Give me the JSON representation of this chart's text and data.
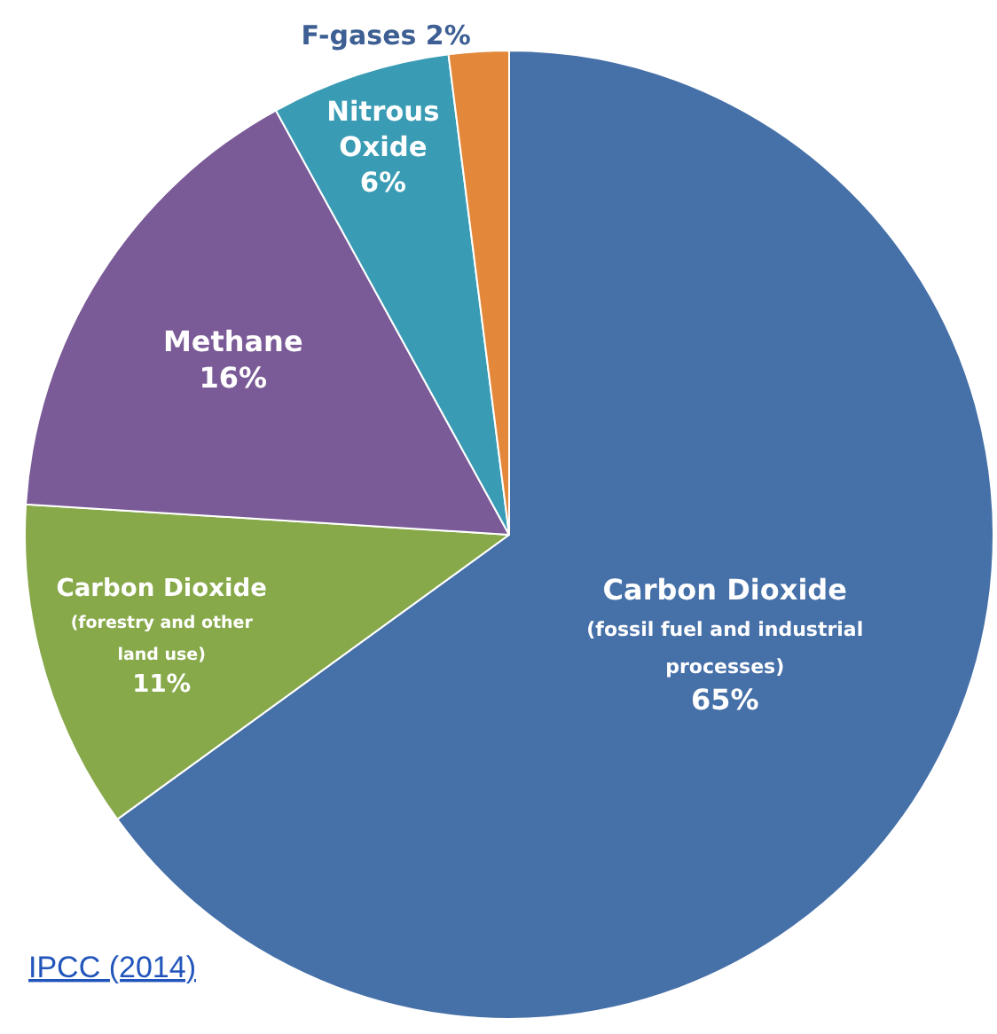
{
  "chart_data": {
    "type": "pie",
    "categories": [
      "Carbon Dioxide (fossil fuel and industrial processes)",
      "Carbon Dioxide (forestry and other land use)",
      "Methane",
      "Nitrous Oxide",
      "F-gases"
    ],
    "values": [
      65,
      11,
      16,
      6,
      2
    ],
    "colors": [
      "#4670a8",
      "#87a94a",
      "#7a5a97",
      "#3a9cb4",
      "#e3883a"
    ],
    "value_labels": [
      "65%",
      "11%",
      "16%",
      "6%",
      "2%"
    ],
    "legend": false,
    "annotations": [
      "IPCC (2014)"
    ]
  }
}
